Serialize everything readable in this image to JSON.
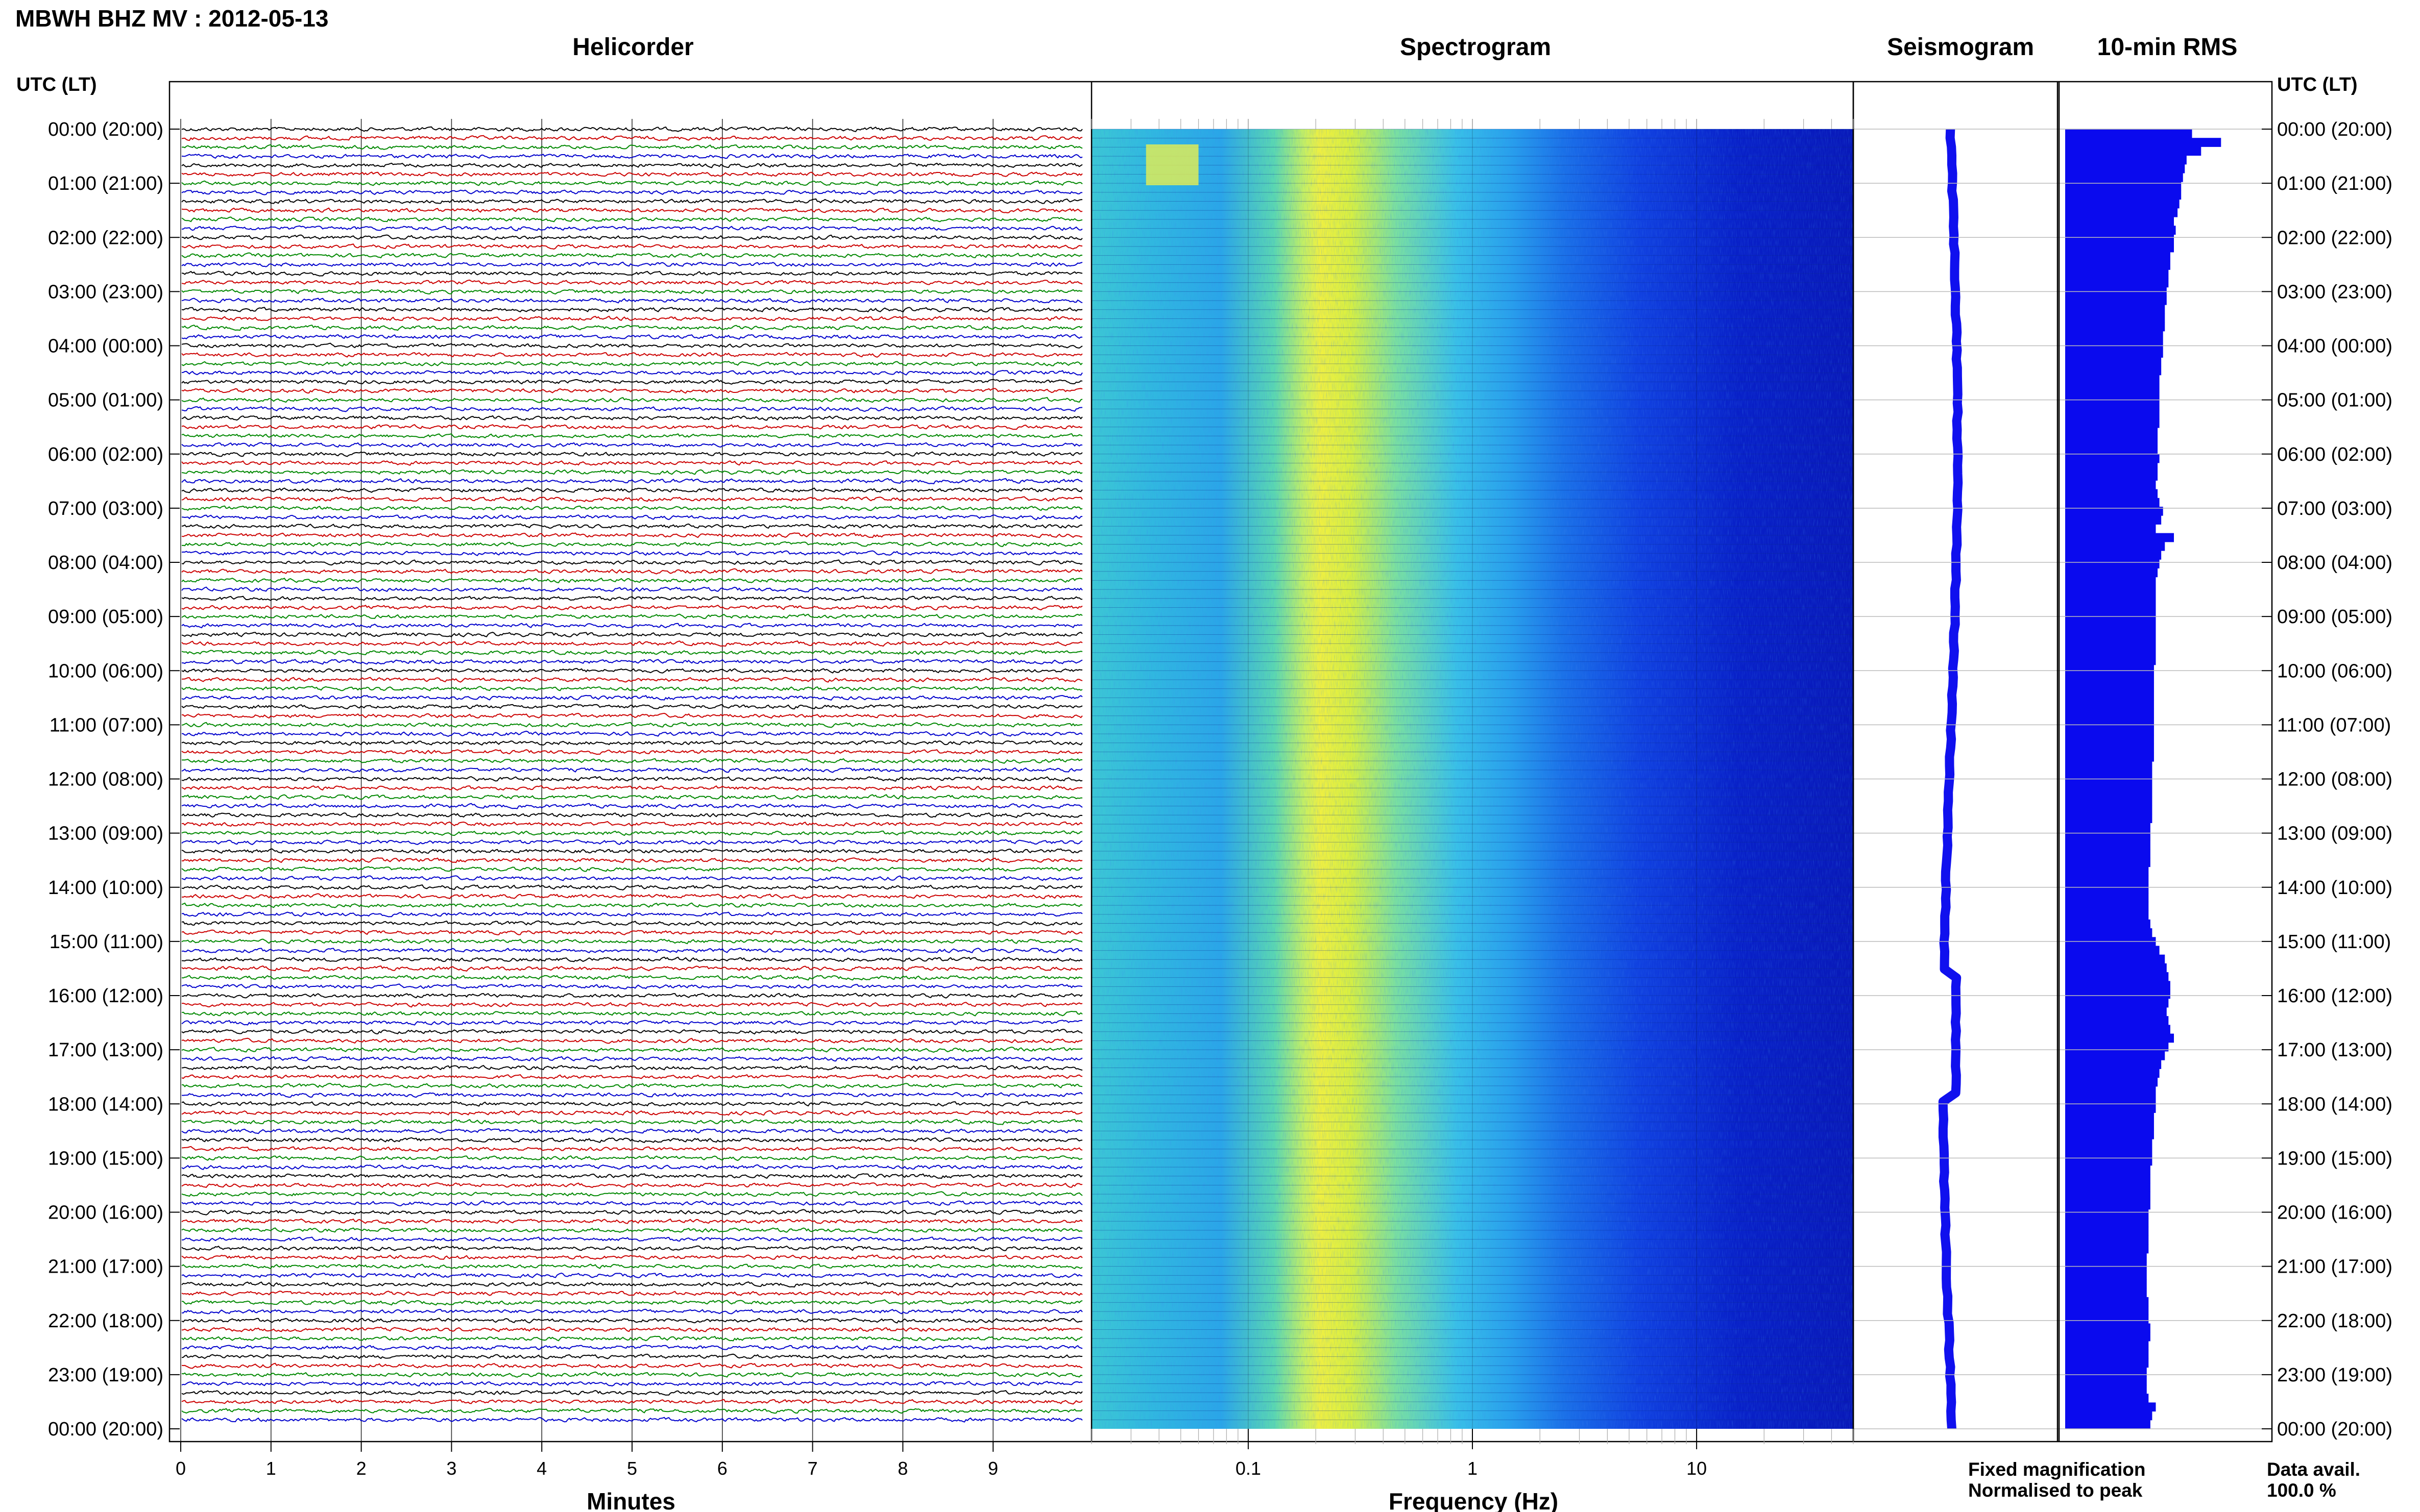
{
  "chart_data": {
    "type": "heatmap",
    "title": "MBWH BHZ MV : 2012-05-13",
    "time_axis_label": "UTC (LT)",
    "time_labels": [
      "00:00 (20:00)",
      "01:00 (21:00)",
      "02:00 (22:00)",
      "03:00 (23:00)",
      "04:00 (00:00)",
      "05:00 (01:00)",
      "06:00 (02:00)",
      "07:00 (03:00)",
      "08:00 (04:00)",
      "09:00 (05:00)",
      "10:00 (06:00)",
      "11:00 (07:00)",
      "12:00 (08:00)",
      "13:00 (09:00)",
      "14:00 (10:00)",
      "15:00 (11:00)",
      "16:00 (12:00)",
      "17:00 (13:00)",
      "18:00 (14:00)",
      "19:00 (15:00)",
      "20:00 (16:00)",
      "21:00 (17:00)",
      "22:00 (18:00)",
      "23:00 (19:00)",
      "00:00 (20:00)"
    ],
    "helicorder": {
      "title": "Helicorder",
      "xlabel": "Minutes",
      "xticks": [
        0,
        1,
        2,
        3,
        4,
        5,
        6,
        7,
        8,
        9
      ],
      "xlim": [
        0,
        10
      ],
      "trace_colors": [
        "#000000",
        "#cc0000",
        "#008800",
        "#0000cc"
      ],
      "traces_per_hour": 6
    },
    "spectrogram": {
      "title": "Spectrogram",
      "xlabel": "Frequency (Hz)",
      "xscale": "log",
      "xticks": [
        0.1,
        1,
        10
      ],
      "xtick_labels": [
        "0.1",
        "1",
        "10"
      ],
      "xlim": [
        0.02,
        50
      ],
      "dominant_band_hz": [
        0.2,
        0.35
      ]
    },
    "seismogram": {
      "title": "Seismogram",
      "color": "#1010ee"
    },
    "rms": {
      "title": "10-min RMS",
      "color": "#0a0aee",
      "relative_values": [
        0.7,
        0.86,
        0.75,
        0.67,
        0.66,
        0.65,
        0.64,
        0.64,
        0.63,
        0.62,
        0.6,
        0.61,
        0.6,
        0.6,
        0.58,
        0.58,
        0.57,
        0.57,
        0.56,
        0.56,
        0.55,
        0.55,
        0.55,
        0.54,
        0.54,
        0.54,
        0.53,
        0.53,
        0.52,
        0.52,
        0.52,
        0.52,
        0.52,
        0.52,
        0.51,
        0.51,
        0.51,
        0.52,
        0.51,
        0.51,
        0.5,
        0.51,
        0.52,
        0.54,
        0.53,
        0.5,
        0.6,
        0.55,
        0.53,
        0.52,
        0.51,
        0.5,
        0.5,
        0.5,
        0.5,
        0.5,
        0.5,
        0.5,
        0.5,
        0.5,
        0.5,
        0.49,
        0.49,
        0.49,
        0.49,
        0.49,
        0.49,
        0.49,
        0.49,
        0.49,
        0.49,
        0.49,
        0.48,
        0.48,
        0.48,
        0.48,
        0.48,
        0.48,
        0.48,
        0.47,
        0.47,
        0.47,
        0.47,
        0.47,
        0.46,
        0.46,
        0.46,
        0.46,
        0.46,
        0.46,
        0.47,
        0.48,
        0.5,
        0.52,
        0.55,
        0.56,
        0.57,
        0.58,
        0.58,
        0.57,
        0.56,
        0.57,
        0.58,
        0.6,
        0.57,
        0.55,
        0.53,
        0.52,
        0.51,
        0.5,
        0.5,
        0.5,
        0.49,
        0.49,
        0.49,
        0.48,
        0.48,
        0.48,
        0.47,
        0.47,
        0.47,
        0.47,
        0.47,
        0.46,
        0.46,
        0.46,
        0.46,
        0.46,
        0.45,
        0.45,
        0.45,
        0.45,
        0.45,
        0.46,
        0.46,
        0.46,
        0.47,
        0.47,
        0.46,
        0.46,
        0.46,
        0.45,
        0.45,
        0.45,
        0.46,
        0.5,
        0.48,
        0.47
      ]
    },
    "legend": {
      "fixed": "Fixed magnification",
      "fixed_color": "#0000ff",
      "normalised": "Normalised to peak",
      "normalised_color": "#ff0000"
    },
    "data_avail_label": "Data avail.",
    "data_avail_value": "100.0 %"
  }
}
